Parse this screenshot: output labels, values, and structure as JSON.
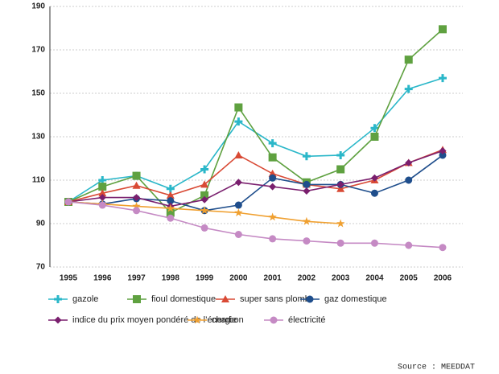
{
  "chart_data": {
    "type": "line",
    "categories": [
      "1995",
      "1996",
      "1997",
      "1998",
      "1999",
      "2000",
      "2001",
      "2002",
      "2003",
      "2004",
      "2005",
      "2006"
    ],
    "ylim": [
      70,
      190
    ],
    "yticks": [
      70,
      90,
      110,
      130,
      150,
      170,
      190
    ],
    "grid": true,
    "series": [
      {
        "name": "gazole",
        "color": "#2ab7c9",
        "marker": "plus",
        "values": [
          100,
          110,
          112,
          106,
          115,
          137,
          127,
          121,
          121.5,
          134,
          152,
          157
        ]
      },
      {
        "name": "fioul domestique",
        "color": "#5fa140",
        "marker": "square",
        "values": [
          100,
          107,
          112,
          95,
          103,
          143.5,
          120.5,
          109,
          115,
          130,
          165.5,
          179.5
        ]
      },
      {
        "name": "super sans plomb",
        "color": "#d94a35",
        "marker": "triangle",
        "values": [
          100,
          104,
          107.5,
          103,
          108,
          121.5,
          113,
          108,
          106,
          110,
          118,
          124
        ]
      },
      {
        "name": "gaz domestique",
        "color": "#1f4e8c",
        "marker": "circle",
        "values": [
          100,
          99,
          101.5,
          100.5,
          96,
          98.5,
          111,
          108,
          108,
          104,
          110,
          121.5
        ]
      },
      {
        "name": "indice du prix moyen pondéré de l’énergie",
        "color": "#7a1f6e",
        "marker": "diamond",
        "values": [
          100,
          102,
          102,
          98,
          101,
          109,
          107,
          105,
          108,
          111,
          118,
          123.5
        ]
      },
      {
        "name": "charbon",
        "color": "#f0a030",
        "marker": "star",
        "values": [
          100,
          99,
          98,
          97,
          96,
          95,
          93,
          91,
          90,
          null,
          null,
          null
        ]
      },
      {
        "name": "électricité",
        "color": "#c58ac4",
        "marker": "circle",
        "values": [
          100,
          98.5,
          96,
          92.5,
          88,
          85,
          83,
          82,
          81,
          81,
          80,
          79
        ]
      }
    ],
    "source": "Source : MEEDDAT"
  }
}
